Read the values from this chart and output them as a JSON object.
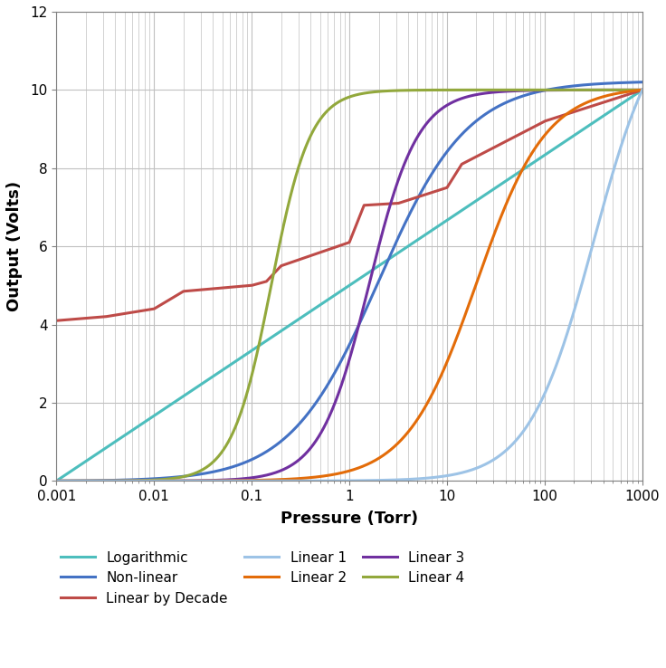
{
  "title": "",
  "xlabel": "Pressure (Torr)",
  "ylabel": "Output (Volts)",
  "ylim": [
    0,
    12
  ],
  "yticks": [
    0,
    2,
    4,
    6,
    8,
    10,
    12
  ],
  "colors": {
    "Logarithmic": "#4DBEBD",
    "Non-linear": "#4472C4",
    "Linear by Decade": "#BE4B48",
    "Linear 1": "#9DC3E6",
    "Linear 2": "#E36C09",
    "Linear 3": "#7030A0",
    "Linear 4": "#92A83C"
  },
  "legend_order": [
    "Logarithmic",
    "Non-linear",
    "Linear by Decade",
    "Linear 1",
    "Linear 2",
    "Linear 3",
    "Linear 4"
  ],
  "background_color": "#FFFFFF",
  "grid_color": "#C0C0C0"
}
